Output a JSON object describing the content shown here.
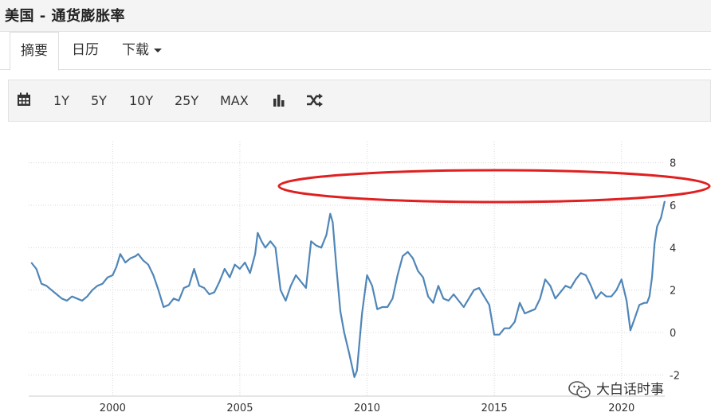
{
  "header": {
    "title": "美国 - 通货膨胀率"
  },
  "tabs": [
    {
      "label": "摘要",
      "active": true
    },
    {
      "label": "日历",
      "active": false
    },
    {
      "label": "下载",
      "active": false,
      "dropdown": true
    }
  ],
  "toolbar": {
    "ranges": [
      "1Y",
      "5Y",
      "10Y",
      "25Y",
      "MAX"
    ],
    "icons": [
      "calendar-icon",
      "bar-chart-icon",
      "shuffle-icon"
    ]
  },
  "colors": {
    "line": "#4f86b8",
    "highlight": "#e02020",
    "grid": "#d8d8d8"
  },
  "watermark": {
    "text": "大白话时事"
  },
  "chart_data": {
    "type": "line",
    "title": "",
    "xlabel": "",
    "ylabel": "",
    "xlim": [
      1996.7,
      2021.7
    ],
    "ylim": [
      -3,
      9
    ],
    "yticks": [
      -2,
      0,
      2,
      4,
      6,
      8
    ],
    "xticks": [
      2000,
      2005,
      2010,
      2015,
      2020
    ],
    "grid": true,
    "y_axis_position": "right",
    "annotations": [
      {
        "type": "ellipse",
        "color": "#e02020",
        "around": "values near 6 (2008 peak and 2021 level)"
      }
    ],
    "series": [
      {
        "x": [
          1996.8,
          1997.0,
          1997.2,
          1997.4,
          1997.6,
          1997.8,
          1998.0,
          1998.2,
          1998.4,
          1998.6,
          1998.8,
          1999.0,
          1999.2,
          1999.4,
          1999.6,
          1999.8,
          2000.0,
          2000.15,
          2000.3,
          2000.5,
          2000.7,
          2000.9,
          2001.0,
          2001.2,
          2001.4,
          2001.6,
          2001.8,
          2002.0,
          2002.2,
          2002.4,
          2002.6,
          2002.8,
          2003.0,
          2003.2,
          2003.4,
          2003.6,
          2003.8,
          2004.0,
          2004.2,
          2004.4,
          2004.6,
          2004.8,
          2005.0,
          2005.2,
          2005.4,
          2005.6,
          2005.7,
          2005.85,
          2006.0,
          2006.2,
          2006.4,
          2006.6,
          2006.8,
          2007.0,
          2007.2,
          2007.4,
          2007.6,
          2007.8,
          2008.0,
          2008.2,
          2008.4,
          2008.55,
          2008.65,
          2008.8,
          2008.95,
          2009.1,
          2009.3,
          2009.5,
          2009.6,
          2009.8,
          2010.0,
          2010.2,
          2010.4,
          2010.6,
          2010.8,
          2011.0,
          2011.2,
          2011.4,
          2011.6,
          2011.8,
          2012.0,
          2012.2,
          2012.4,
          2012.6,
          2012.8,
          2013.0,
          2013.2,
          2013.4,
          2013.6,
          2013.8,
          2014.0,
          2014.2,
          2014.4,
          2014.6,
          2014.8,
          2015.0,
          2015.2,
          2015.4,
          2015.6,
          2015.8,
          2016.0,
          2016.2,
          2016.4,
          2016.6,
          2016.8,
          2017.0,
          2017.2,
          2017.4,
          2017.6,
          2017.8,
          2018.0,
          2018.2,
          2018.4,
          2018.6,
          2018.8,
          2019.0,
          2019.2,
          2019.4,
          2019.6,
          2019.8,
          2020.0,
          2020.2,
          2020.35,
          2020.5,
          2020.7,
          2020.9,
          2021.0,
          2021.1,
          2021.2,
          2021.3,
          2021.4,
          2021.55,
          2021.7
        ],
        "y": [
          3.3,
          3.0,
          2.3,
          2.2,
          2.0,
          1.8,
          1.6,
          1.5,
          1.7,
          1.6,
          1.5,
          1.7,
          2.0,
          2.2,
          2.3,
          2.6,
          2.7,
          3.1,
          3.7,
          3.3,
          3.5,
          3.6,
          3.7,
          3.4,
          3.2,
          2.7,
          2.0,
          1.2,
          1.3,
          1.6,
          1.5,
          2.1,
          2.2,
          3.0,
          2.2,
          2.1,
          1.8,
          1.9,
          2.4,
          3.0,
          2.6,
          3.2,
          3.0,
          3.3,
          2.8,
          3.7,
          4.7,
          4.3,
          4.0,
          4.3,
          4.0,
          2.0,
          1.5,
          2.2,
          2.7,
          2.4,
          2.1,
          4.3,
          4.1,
          4.0,
          4.6,
          5.6,
          5.2,
          3.0,
          1.0,
          0.0,
          -1.0,
          -2.1,
          -1.8,
          0.9,
          2.7,
          2.2,
          1.1,
          1.2,
          1.2,
          1.6,
          2.7,
          3.6,
          3.8,
          3.5,
          2.9,
          2.6,
          1.7,
          1.4,
          2.2,
          1.6,
          1.5,
          1.8,
          1.5,
          1.2,
          1.6,
          2.0,
          2.1,
          1.7,
          1.3,
          -0.1,
          -0.1,
          0.2,
          0.2,
          0.5,
          1.4,
          0.9,
          1.0,
          1.1,
          1.6,
          2.5,
          2.2,
          1.6,
          1.9,
          2.2,
          2.1,
          2.5,
          2.8,
          2.7,
          2.2,
          1.6,
          1.9,
          1.7,
          1.7,
          2.0,
          2.5,
          1.5,
          0.1,
          0.6,
          1.3,
          1.4,
          1.4,
          1.7,
          2.6,
          4.2,
          5.0,
          5.4,
          6.2
        ]
      }
    ]
  }
}
